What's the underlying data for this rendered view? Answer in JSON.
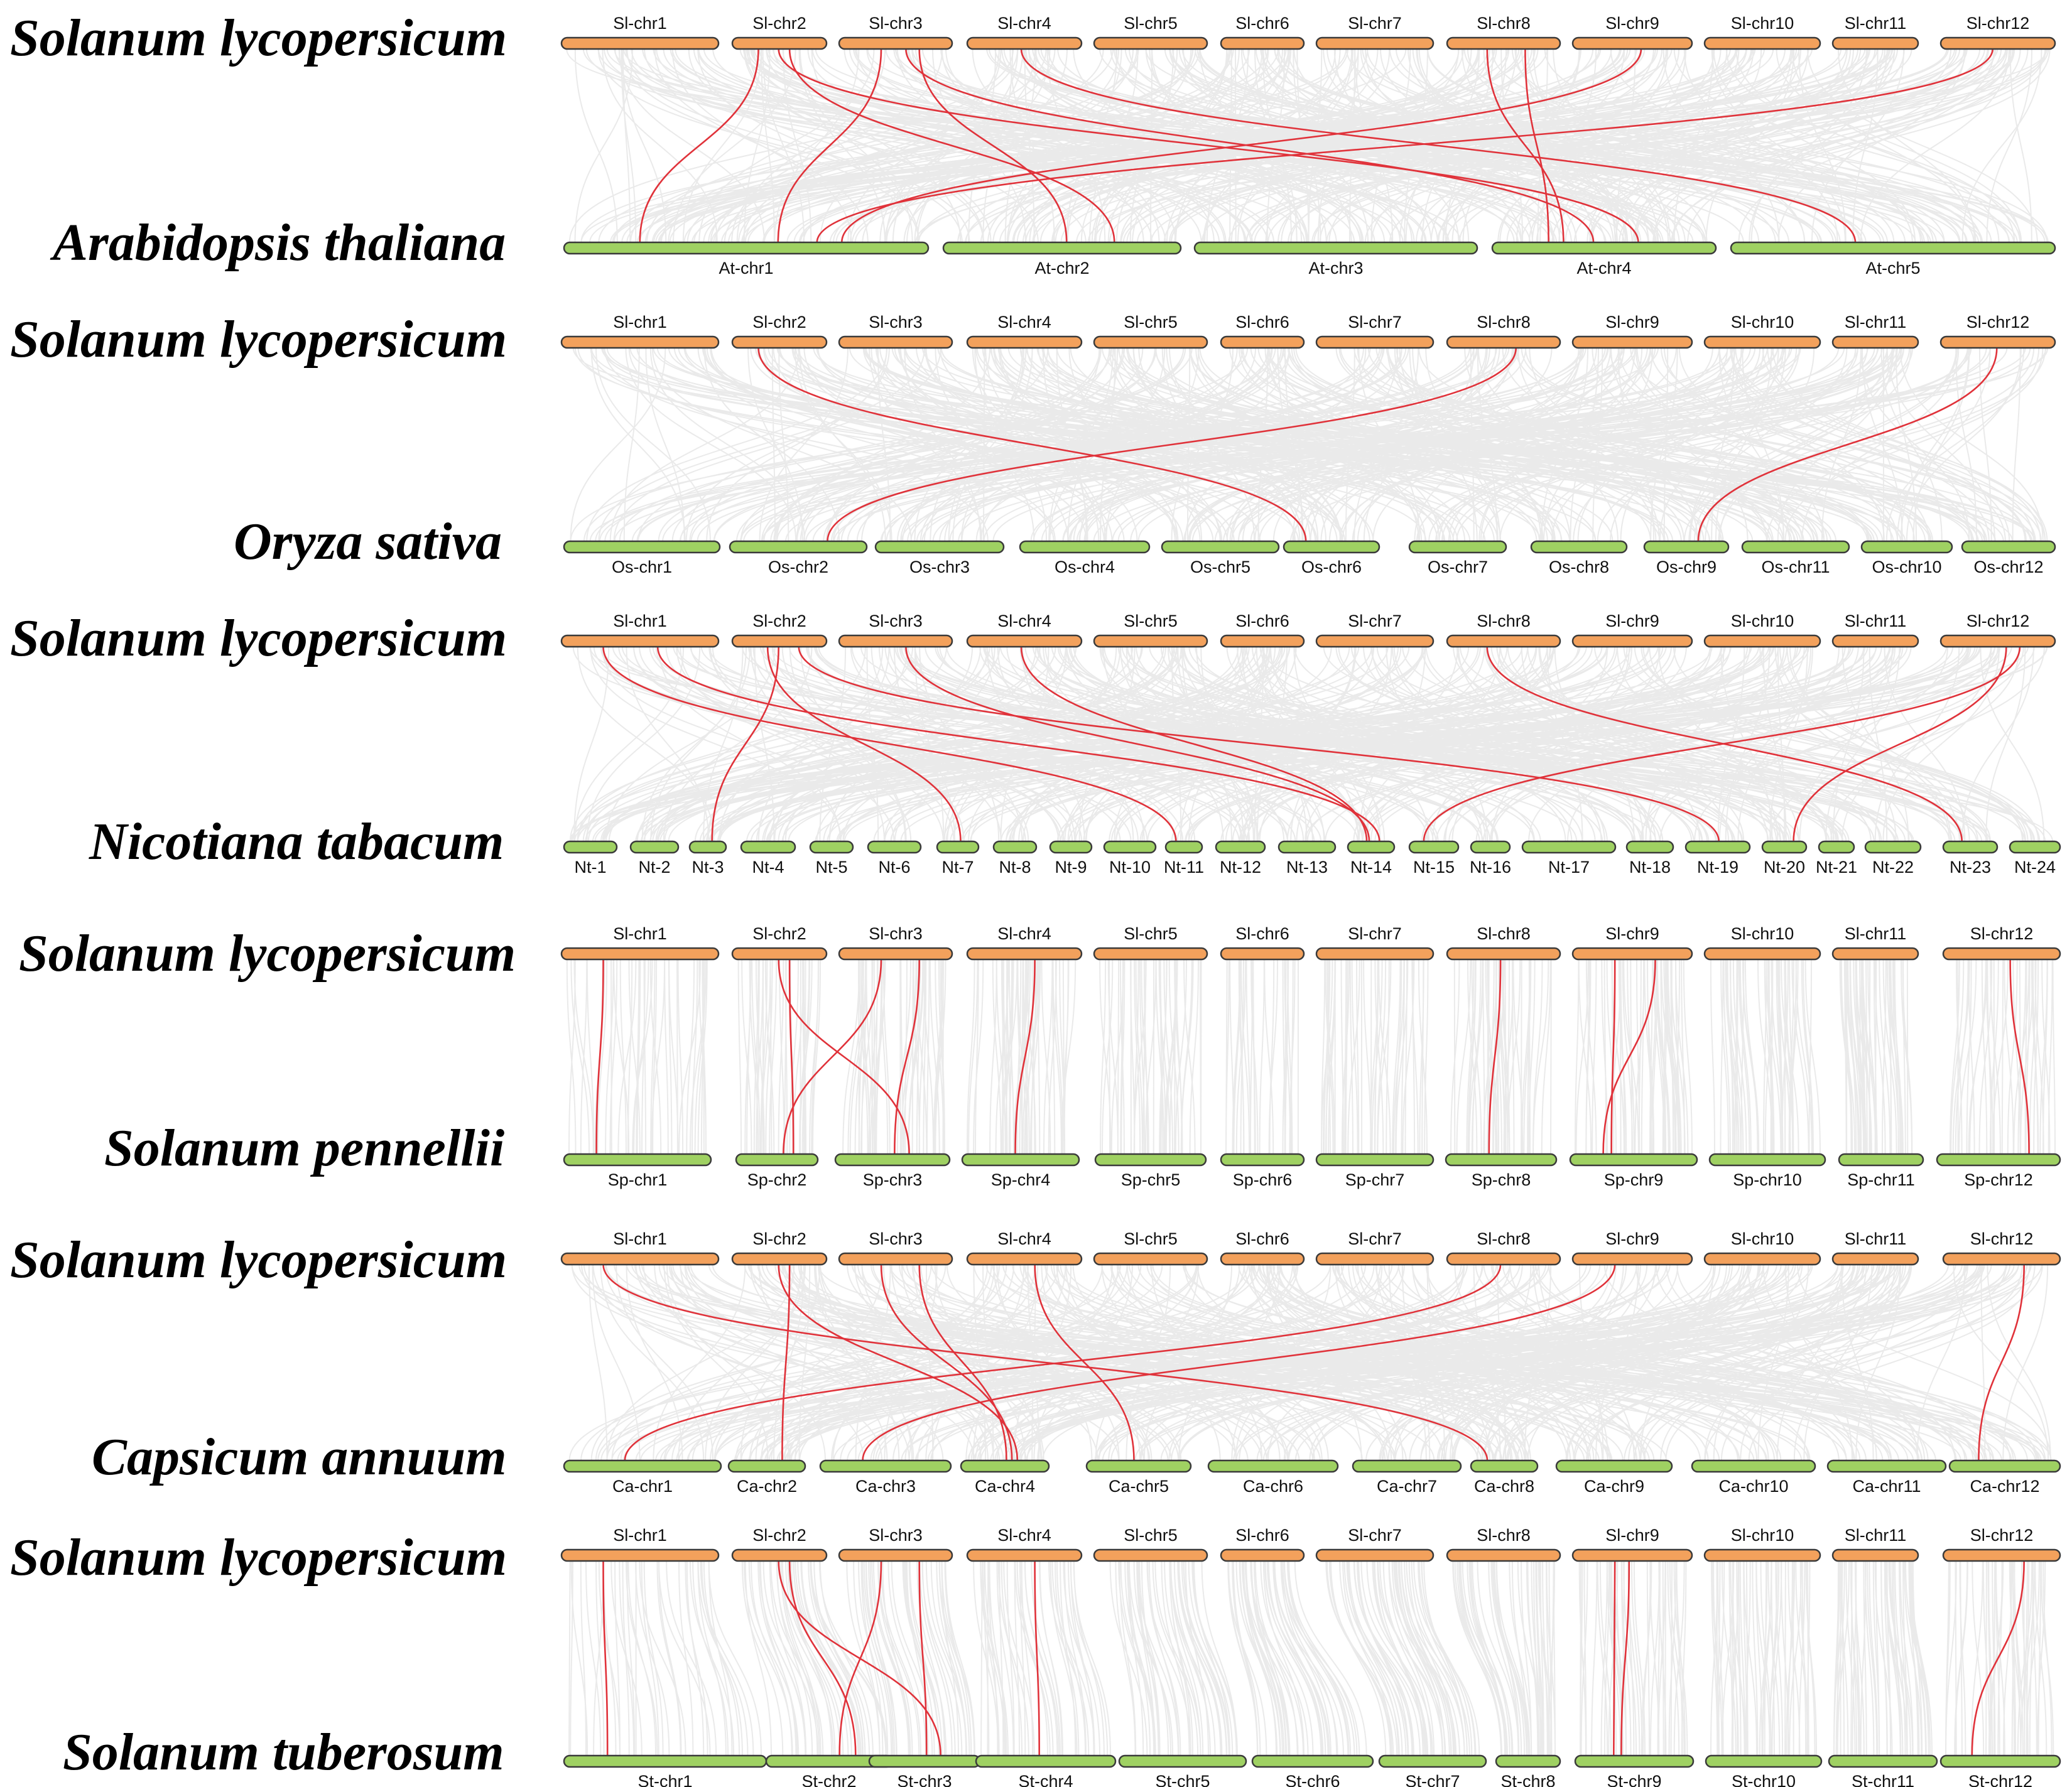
{
  "colors": {
    "reference_chromosome": "#f3a15c",
    "target_chromosome": "#9fd162",
    "background_link": "#d9d9d9",
    "highlight_link": "#e0323a"
  },
  "panels": [
    {
      "top_species": "Solanum lycopersicum",
      "bottom_species": "Arabidopsis thaliana",
      "top_chromosomes": [
        "Sl-chr1",
        "Sl-chr2",
        "Sl-chr3",
        "Sl-chr4",
        "Sl-chr5",
        "Sl-chr6",
        "Sl-chr7",
        "Sl-chr8",
        "Sl-chr9",
        "Sl-chr10",
        "Sl-chr11",
        "Sl-chr12"
      ],
      "bottom_chromosomes": [
        "At-chr1",
        "At-chr2",
        "At-chr3",
        "At-chr4",
        "At-chr5"
      ],
      "highlighted_links": [
        {
          "from": "Sl-chr2",
          "to": "At-chr1"
        },
        {
          "from": "Sl-chr2",
          "to": "At-chr2"
        },
        {
          "from": "Sl-chr2",
          "to": "At-chr4"
        },
        {
          "from": "Sl-chr3",
          "to": "At-chr1"
        },
        {
          "from": "Sl-chr3",
          "to": "At-chr2"
        },
        {
          "from": "Sl-chr3",
          "to": "At-chr4"
        },
        {
          "from": "Sl-chr4",
          "to": "At-chr5"
        },
        {
          "from": "Sl-chr8",
          "to": "At-chr4"
        },
        {
          "from": "Sl-chr8",
          "to": "At-chr4"
        },
        {
          "from": "Sl-chr9",
          "to": "At-chr1"
        },
        {
          "from": "Sl-chr12",
          "to": "At-chr1"
        }
      ]
    },
    {
      "top_species": "Solanum lycopersicum",
      "bottom_species": "Oryza sativa",
      "top_chromosomes": [
        "Sl-chr1",
        "Sl-chr2",
        "Sl-chr3",
        "Sl-chr4",
        "Sl-chr5",
        "Sl-chr6",
        "Sl-chr7",
        "Sl-chr8",
        "Sl-chr9",
        "Sl-chr10",
        "Sl-chr11",
        "Sl-chr12"
      ],
      "bottom_chromosomes": [
        "Os-chr1",
        "Os-chr2",
        "Os-chr3",
        "Os-chr4",
        "Os-chr5",
        "Os-chr6",
        "Os-chr7",
        "Os-chr8",
        "Os-chr9",
        "Os-chr11",
        "Os-chr10",
        "Os-chr12"
      ],
      "highlighted_links": [
        {
          "from": "Sl-chr2",
          "to": "Os-chr6"
        },
        {
          "from": "Sl-chr8",
          "to": "Os-chr2"
        },
        {
          "from": "Sl-chr12",
          "to": "Os-chr9"
        }
      ]
    },
    {
      "top_species": "Solanum lycopersicum",
      "bottom_species": "Nicotiana tabacum",
      "top_chromosomes": [
        "Sl-chr1",
        "Sl-chr2",
        "Sl-chr3",
        "Sl-chr4",
        "Sl-chr5",
        "Sl-chr6",
        "Sl-chr7",
        "Sl-chr8",
        "Sl-chr9",
        "Sl-chr10",
        "Sl-chr11",
        "Sl-chr12"
      ],
      "bottom_chromosomes": [
        "Nt-1",
        "Nt-2",
        "Nt-3",
        "Nt-4",
        "Nt-5",
        "Nt-6",
        "Nt-7",
        "Nt-8",
        "Nt-9",
        "Nt-10",
        "Nt-11",
        "Nt-12",
        "Nt-13",
        "Nt-14",
        "Nt-15",
        "Nt-16",
        "Nt-17",
        "Nt-18",
        "Nt-19",
        "Nt-20",
        "Nt-21",
        "Nt-22",
        "Nt-23",
        "Nt-24"
      ],
      "highlighted_links": [
        {
          "from": "Sl-chr1",
          "to": "Nt-11"
        },
        {
          "from": "Sl-chr1",
          "to": "Nt-14"
        },
        {
          "from": "Sl-chr2",
          "to": "Nt-3"
        },
        {
          "from": "Sl-chr2",
          "to": "Nt-7"
        },
        {
          "from": "Sl-chr2",
          "to": "Nt-19"
        },
        {
          "from": "Sl-chr3",
          "to": "Nt-14"
        },
        {
          "from": "Sl-chr4",
          "to": "Nt-14"
        },
        {
          "from": "Sl-chr8",
          "to": "Nt-23"
        },
        {
          "from": "Sl-chr12",
          "to": "Nt-15"
        },
        {
          "from": "Sl-chr12",
          "to": "Nt-20"
        }
      ]
    },
    {
      "top_species": "Solanum lycopersicum",
      "bottom_species": "Solanum pennellii",
      "top_chromosomes": [
        "Sl-chr1",
        "Sl-chr2",
        "Sl-chr3",
        "Sl-chr4",
        "Sl-chr5",
        "Sl-chr6",
        "Sl-chr7",
        "Sl-chr8",
        "Sl-chr9",
        "Sl-chr10",
        "Sl-chr11",
        "Sl-chr12"
      ],
      "bottom_chromosomes": [
        "Sp-chr1",
        "Sp-chr2",
        "Sp-chr3",
        "Sp-chr4",
        "Sp-chr5",
        "Sp-chr6",
        "Sp-chr7",
        "Sp-chr8",
        "Sp-chr9",
        "Sp-chr10",
        "Sp-chr11",
        "Sp-chr12"
      ],
      "highlighted_links": [
        {
          "from": "Sl-chr1",
          "to": "Sp-chr1"
        },
        {
          "from": "Sl-chr2",
          "to": "Sp-chr2"
        },
        {
          "from": "Sl-chr2",
          "to": "Sp-chr3"
        },
        {
          "from": "Sl-chr3",
          "to": "Sp-chr2"
        },
        {
          "from": "Sl-chr3",
          "to": "Sp-chr3"
        },
        {
          "from": "Sl-chr4",
          "to": "Sp-chr4"
        },
        {
          "from": "Sl-chr8",
          "to": "Sp-chr8"
        },
        {
          "from": "Sl-chr9",
          "to": "Sp-chr9"
        },
        {
          "from": "Sl-chr9",
          "to": "Sp-chr9"
        },
        {
          "from": "Sl-chr12",
          "to": "Sp-chr12"
        }
      ]
    },
    {
      "top_species": "Solanum lycopersicum",
      "bottom_species": "Capsicum annuum",
      "top_chromosomes": [
        "Sl-chr1",
        "Sl-chr2",
        "Sl-chr3",
        "Sl-chr4",
        "Sl-chr5",
        "Sl-chr6",
        "Sl-chr7",
        "Sl-chr8",
        "Sl-chr9",
        "Sl-chr10",
        "Sl-chr11",
        "Sl-chr12"
      ],
      "bottom_chromosomes": [
        "Ca-chr1",
        "Ca-chr2",
        "Ca-chr3",
        "Ca-chr4",
        "Ca-chr5",
        "Ca-chr6",
        "Ca-chr7",
        "Ca-chr8",
        "Ca-chr9",
        "Ca-chr10",
        "Ca-chr11",
        "Ca-chr12"
      ],
      "highlighted_links": [
        {
          "from": "Sl-chr1",
          "to": "Ca-chr8"
        },
        {
          "from": "Sl-chr2",
          "to": "Ca-chr2"
        },
        {
          "from": "Sl-chr2",
          "to": "Ca-chr4"
        },
        {
          "from": "Sl-chr3",
          "to": "Ca-chr4"
        },
        {
          "from": "Sl-chr3",
          "to": "Ca-chr4"
        },
        {
          "from": "Sl-chr4",
          "to": "Ca-chr5"
        },
        {
          "from": "Sl-chr8",
          "to": "Ca-chr1"
        },
        {
          "from": "Sl-chr9",
          "to": "Ca-chr3"
        },
        {
          "from": "Sl-chr12",
          "to": "Ca-chr12"
        }
      ]
    },
    {
      "top_species": "Solanum lycopersicum",
      "bottom_species": "Solanum tuberosum",
      "top_chromosomes": [
        "Sl-chr1",
        "Sl-chr2",
        "Sl-chr3",
        "Sl-chr4",
        "Sl-chr5",
        "Sl-chr6",
        "Sl-chr7",
        "Sl-chr8",
        "Sl-chr9",
        "Sl-chr10",
        "Sl-chr11",
        "Sl-chr12"
      ],
      "bottom_chromosomes": [
        "St-chr1",
        "St-chr2",
        "St-chr3",
        "St-chr4",
        "St-chr5",
        "St-chr6",
        "St-chr7",
        "St-chr8",
        "St-chr9",
        "St-chr10",
        "St-chr11",
        "St-chr12"
      ],
      "highlighted_links": [
        {
          "from": "Sl-chr1",
          "to": "St-chr1"
        },
        {
          "from": "Sl-chr2",
          "to": "St-chr2"
        },
        {
          "from": "Sl-chr2",
          "to": "St-chr3"
        },
        {
          "from": "Sl-chr3",
          "to": "St-chr2"
        },
        {
          "from": "Sl-chr3",
          "to": "St-chr3"
        },
        {
          "from": "Sl-chr4",
          "to": "St-chr4"
        },
        {
          "from": "Sl-chr9",
          "to": "St-chr9"
        },
        {
          "from": "Sl-chr9",
          "to": "St-chr9"
        },
        {
          "from": "Sl-chr12",
          "to": "St-chr12"
        }
      ]
    }
  ]
}
